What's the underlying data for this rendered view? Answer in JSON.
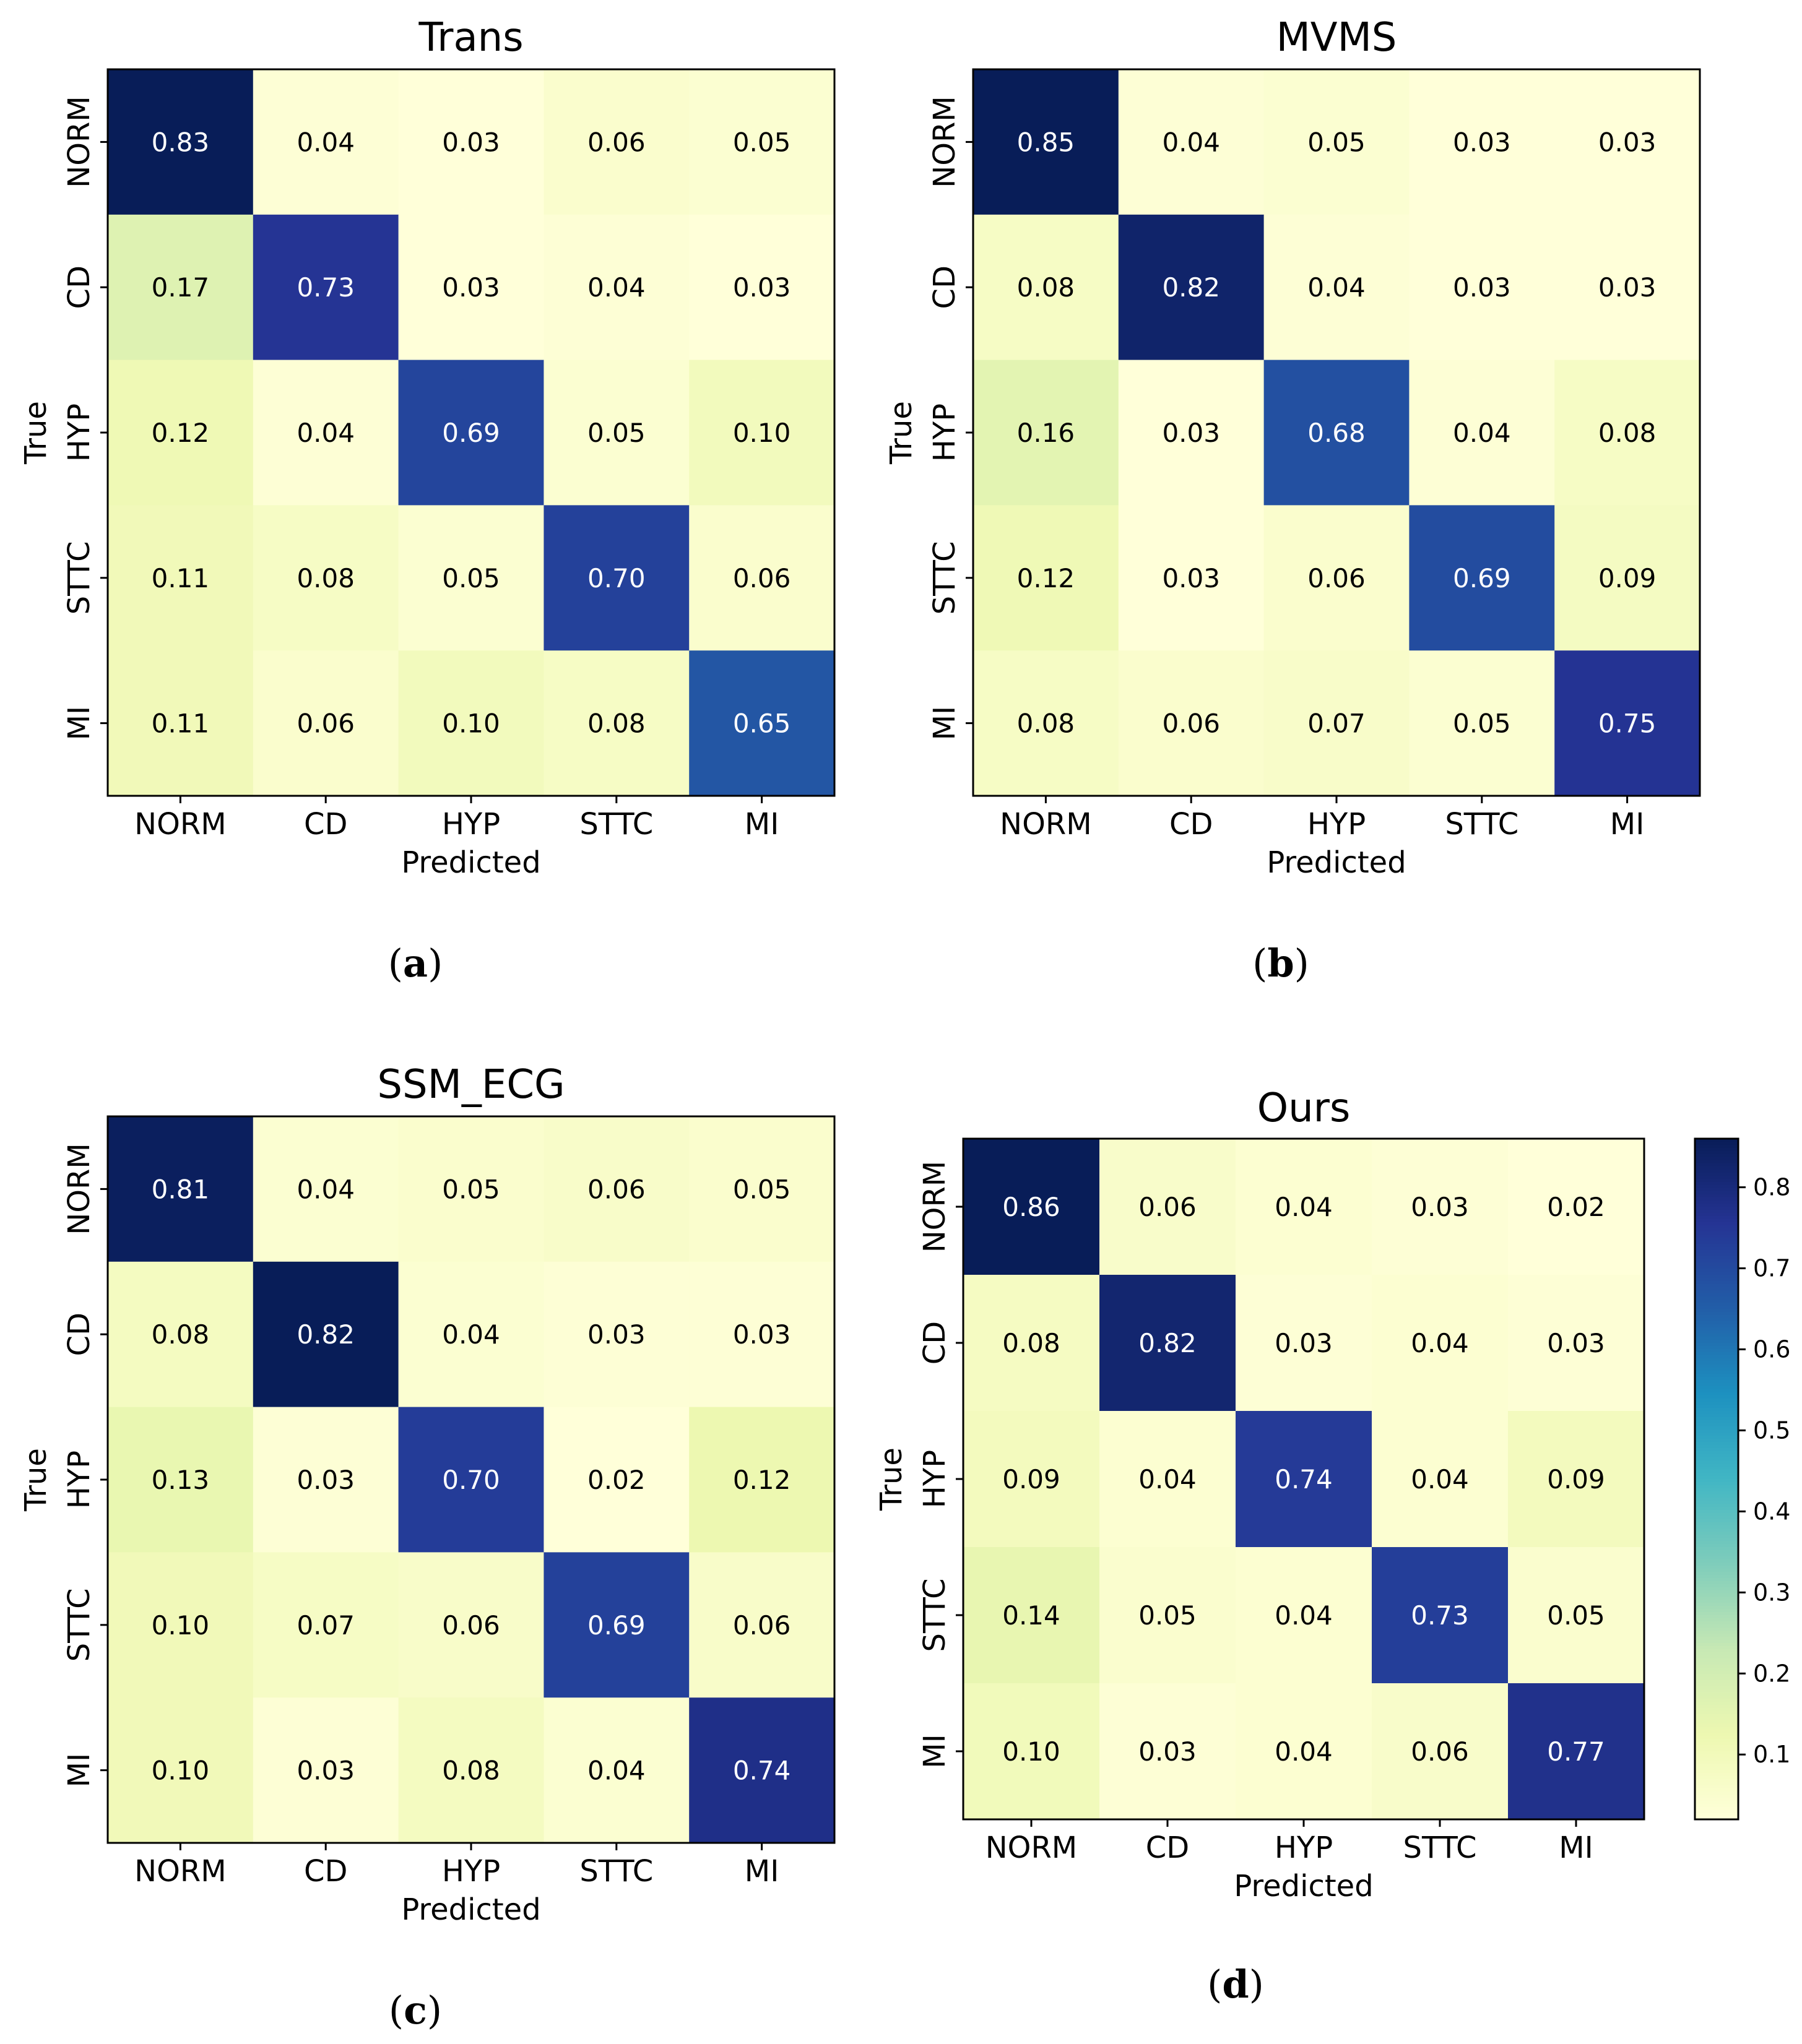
{
  "chart_data": [
    {
      "type": "heatmap",
      "title": "Trans",
      "caption": "a",
      "xlabel": "Predicted",
      "ylabel": "True",
      "labels": [
        "NORM",
        "CD",
        "HYP",
        "STTC",
        "MI"
      ],
      "matrix": [
        [
          0.83,
          0.04,
          0.03,
          0.06,
          0.05
        ],
        [
          0.17,
          0.73,
          0.03,
          0.04,
          0.03
        ],
        [
          0.12,
          0.04,
          0.69,
          0.05,
          0.1
        ],
        [
          0.11,
          0.08,
          0.05,
          0.7,
          0.06
        ],
        [
          0.11,
          0.06,
          0.1,
          0.08,
          0.65
        ]
      ]
    },
    {
      "type": "heatmap",
      "title": "MVMS",
      "caption": "b",
      "xlabel": "Predicted",
      "ylabel": "True",
      "labels": [
        "NORM",
        "CD",
        "HYP",
        "STTC",
        "MI"
      ],
      "matrix": [
        [
          0.85,
          0.04,
          0.05,
          0.03,
          0.03
        ],
        [
          0.08,
          0.82,
          0.04,
          0.03,
          0.03
        ],
        [
          0.16,
          0.03,
          0.68,
          0.04,
          0.08
        ],
        [
          0.12,
          0.03,
          0.06,
          0.69,
          0.09
        ],
        [
          0.08,
          0.06,
          0.07,
          0.05,
          0.75
        ]
      ]
    },
    {
      "type": "heatmap",
      "title": "SSM_ECG",
      "caption": "c",
      "xlabel": "Predicted",
      "ylabel": "True",
      "labels": [
        "NORM",
        "CD",
        "HYP",
        "STTC",
        "MI"
      ],
      "matrix": [
        [
          0.81,
          0.04,
          0.05,
          0.06,
          0.05
        ],
        [
          0.08,
          0.82,
          0.04,
          0.03,
          0.03
        ],
        [
          0.13,
          0.03,
          0.7,
          0.02,
          0.12
        ],
        [
          0.1,
          0.07,
          0.06,
          0.69,
          0.06
        ],
        [
          0.1,
          0.03,
          0.08,
          0.04,
          0.74
        ]
      ]
    },
    {
      "type": "heatmap",
      "title": "Ours",
      "caption": "d",
      "xlabel": "Predicted",
      "ylabel": "True",
      "labels": [
        "NORM",
        "CD",
        "HYP",
        "STTC",
        "MI"
      ],
      "matrix": [
        [
          0.86,
          0.06,
          0.04,
          0.03,
          0.02
        ],
        [
          0.08,
          0.82,
          0.03,
          0.04,
          0.03
        ],
        [
          0.09,
          0.04,
          0.74,
          0.04,
          0.09
        ],
        [
          0.14,
          0.05,
          0.04,
          0.73,
          0.05
        ],
        [
          0.1,
          0.03,
          0.04,
          0.06,
          0.77
        ]
      ],
      "colorbar": {
        "range": [
          0.02,
          0.86
        ],
        "ticks": [
          0.1,
          0.2,
          0.3,
          0.4,
          0.5,
          0.6,
          0.7,
          0.8
        ],
        "tick_labels": [
          "0.1",
          "0.2",
          "0.3",
          "0.4",
          "0.5",
          "0.6",
          "0.7",
          "0.8"
        ],
        "colormap": "YlGnBu"
      }
    }
  ],
  "caption_parens": {
    "open": "(",
    "close": ")"
  }
}
